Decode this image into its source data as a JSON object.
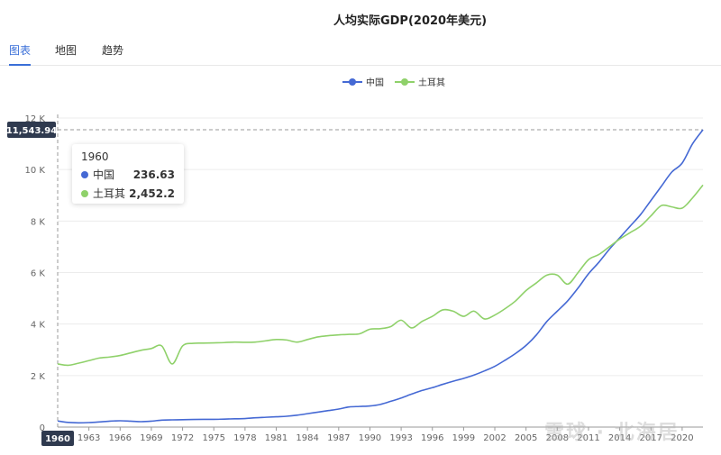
{
  "title": "人均实际GDP(2020年美元)",
  "tabs": [
    {
      "label": "图表",
      "active": true
    },
    {
      "label": "地图",
      "active": false
    },
    {
      "label": "趋势",
      "active": false
    }
  ],
  "tooltip": {
    "year": "1960",
    "rows": [
      {
        "name": "中国",
        "value": "236.63",
        "color": "#4569d4"
      },
      {
        "name": "土耳其",
        "value": "2,452.2",
        "color": "#8fd16a"
      }
    ]
  },
  "crosshair": {
    "y_label": "11,543.94",
    "x_label": "1960",
    "y_value": 11543.94
  },
  "watermark": "雪球 · 北海居",
  "chart_data": {
    "type": "line",
    "title": "人均实际GDP(2020年美元)",
    "xlabel": "",
    "ylabel": "",
    "xlim": [
      1960,
      2022
    ],
    "ylim": [
      0,
      12000
    ],
    "yticks": [
      0,
      2000,
      4000,
      6000,
      8000,
      10000,
      12000
    ],
    "ytick_labels": [
      "0",
      "2 K",
      "4 K",
      "6 K",
      "8 K",
      "10 K",
      "12 K"
    ],
    "xticks": [
      1960,
      1963,
      1966,
      1969,
      1972,
      1975,
      1978,
      1981,
      1984,
      1987,
      1990,
      1993,
      1996,
      1999,
      2002,
      2005,
      2008,
      2011,
      2014,
      2017,
      2020
    ],
    "legend": "top-center",
    "grid": true,
    "series": [
      {
        "name": "中国",
        "color": "#4569d4",
        "x": [
          1960,
          1961,
          1962,
          1963,
          1964,
          1965,
          1966,
          1967,
          1968,
          1969,
          1970,
          1971,
          1972,
          1973,
          1974,
          1975,
          1976,
          1977,
          1978,
          1979,
          1980,
          1981,
          1982,
          1983,
          1984,
          1985,
          1986,
          1987,
          1988,
          1989,
          1990,
          1991,
          1992,
          1993,
          1994,
          1995,
          1996,
          1997,
          1998,
          1999,
          2000,
          2001,
          2002,
          2003,
          2004,
          2005,
          2006,
          2007,
          2008,
          2009,
          2010,
          2011,
          2012,
          2013,
          2014,
          2015,
          2016,
          2017,
          2018,
          2019,
          2020,
          2021,
          2022
        ],
        "y": [
          236.63,
          180,
          165,
          175,
          200,
          230,
          245,
          230,
          210,
          230,
          270,
          280,
          285,
          295,
          300,
          300,
          310,
          320,
          330,
          360,
          380,
          400,
          420,
          460,
          520,
          580,
          640,
          700,
          780,
          800,
          820,
          880,
          1000,
          1130,
          1280,
          1420,
          1530,
          1660,
          1780,
          1890,
          2020,
          2180,
          2360,
          2600,
          2860,
          3170,
          3580,
          4100,
          4500,
          4900,
          5400,
          5950,
          6400,
          6900,
          7350,
          7800,
          8250,
          8800,
          9350,
          9900,
          10250,
          11000,
          11543.94
        ]
      },
      {
        "name": "土耳其",
        "color": "#8fd16a",
        "x": [
          1960,
          1961,
          1962,
          1963,
          1964,
          1965,
          1966,
          1967,
          1968,
          1969,
          1970,
          1971,
          1972,
          1973,
          1974,
          1975,
          1976,
          1977,
          1978,
          1979,
          1980,
          1981,
          1982,
          1983,
          1984,
          1985,
          1986,
          1987,
          1988,
          1989,
          1990,
          1991,
          1992,
          1993,
          1994,
          1995,
          1996,
          1997,
          1998,
          1999,
          2000,
          2001,
          2002,
          2003,
          2004,
          2005,
          2006,
          2007,
          2008,
          2009,
          2010,
          2011,
          2012,
          2013,
          2014,
          2015,
          2016,
          2017,
          2018,
          2019,
          2020,
          2021,
          2022
        ],
        "y": [
          2452.2,
          2400,
          2480,
          2580,
          2680,
          2720,
          2780,
          2880,
          2980,
          3050,
          3150,
          2450,
          3150,
          3250,
          3260,
          3270,
          3280,
          3300,
          3290,
          3300,
          3350,
          3400,
          3380,
          3300,
          3400,
          3500,
          3550,
          3580,
          3600,
          3620,
          3800,
          3820,
          3900,
          4150,
          3850,
          4100,
          4300,
          4550,
          4500,
          4300,
          4500,
          4200,
          4350,
          4600,
          4900,
          5300,
          5600,
          5900,
          5900,
          5550,
          6000,
          6500,
          6700,
          7000,
          7300,
          7550,
          7800,
          8200,
          8600,
          8550,
          8500,
          8900,
          9400
        ]
      }
    ]
  }
}
